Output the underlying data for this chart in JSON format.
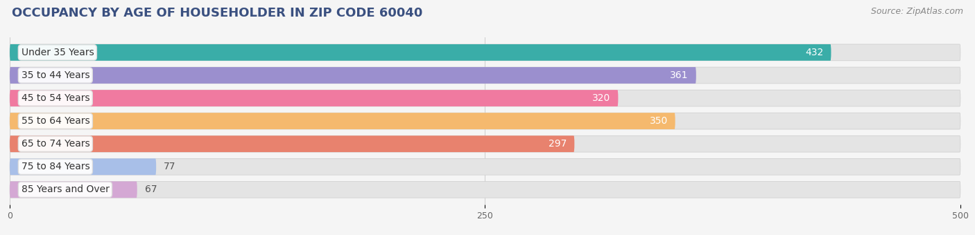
{
  "title": "OCCUPANCY BY AGE OF HOUSEHOLDER IN ZIP CODE 60040",
  "source": "Source: ZipAtlas.com",
  "categories": [
    "Under 35 Years",
    "35 to 44 Years",
    "45 to 54 Years",
    "55 to 64 Years",
    "65 to 74 Years",
    "75 to 84 Years",
    "85 Years and Over"
  ],
  "values": [
    432,
    361,
    320,
    350,
    297,
    77,
    67
  ],
  "bar_colors": [
    "#3aada8",
    "#9b8fce",
    "#f07aa0",
    "#f5b96e",
    "#e8826e",
    "#a8bfe8",
    "#d4a8d4"
  ],
  "xlim": [
    0,
    500
  ],
  "xticks": [
    0,
    250,
    500
  ],
  "background_color": "#f5f5f5",
  "bar_bg_color": "#e4e4e4",
  "title_fontsize": 13,
  "source_fontsize": 9,
  "label_fontsize": 10,
  "value_fontsize": 10,
  "title_color": "#3a5080"
}
